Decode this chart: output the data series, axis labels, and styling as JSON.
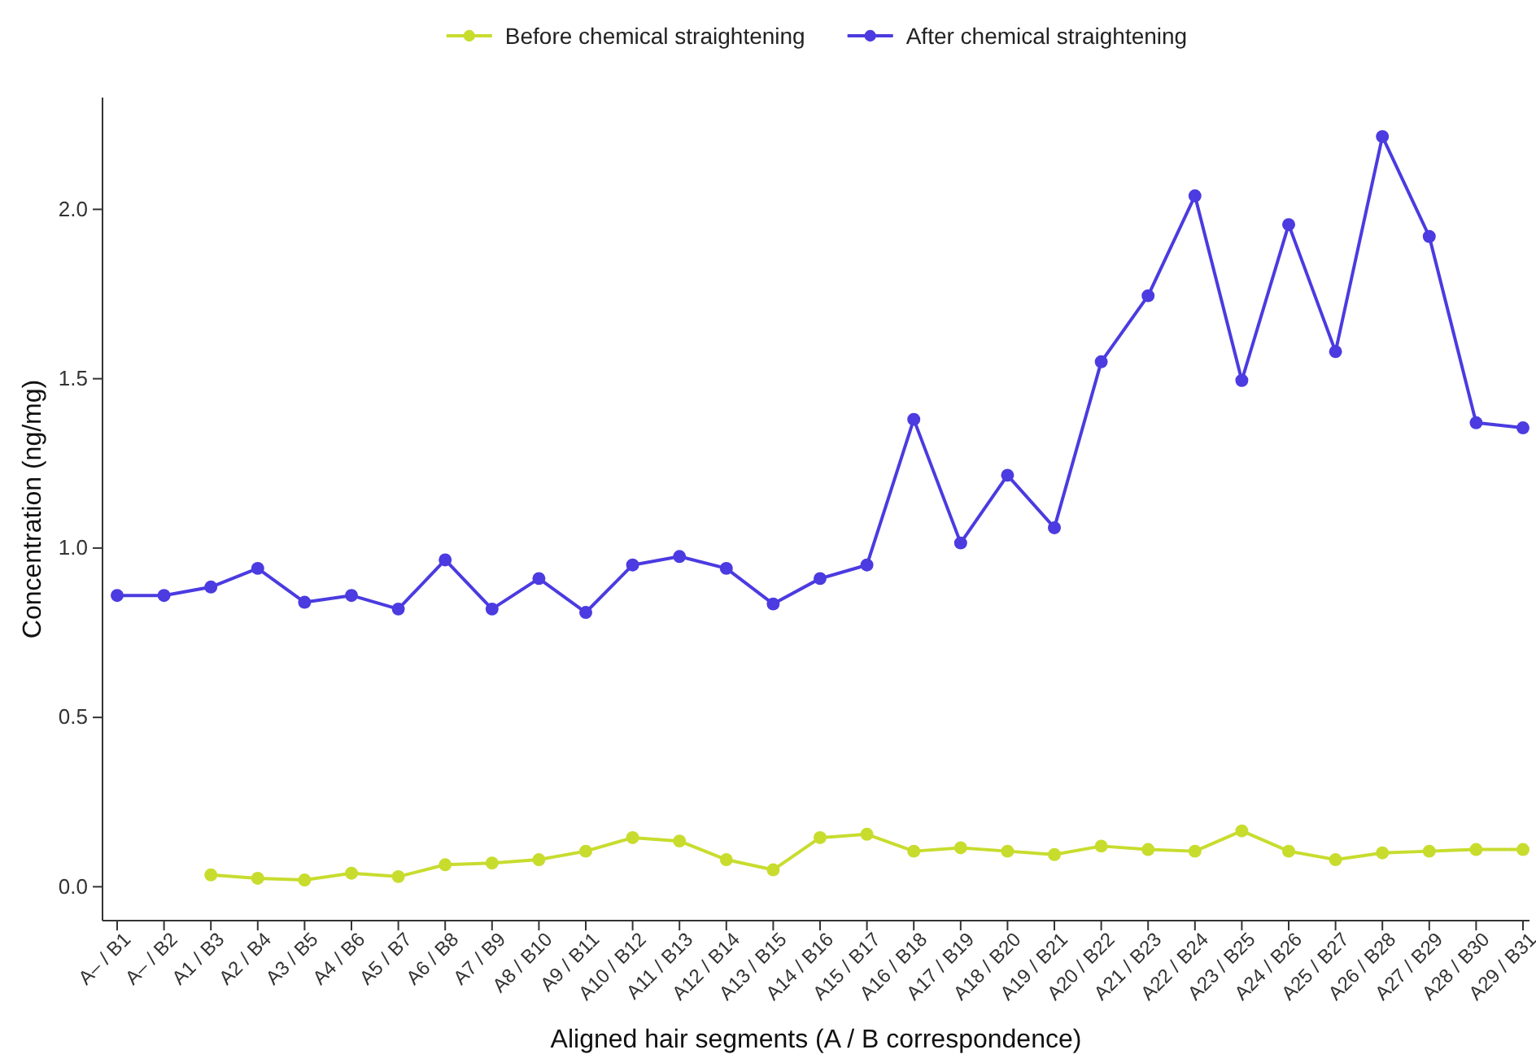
{
  "chart_data": {
    "type": "line",
    "xlabel": "Aligned hair segments (A / B correspondence)",
    "ylabel": "Concentration (ng/mg)",
    "categories": [
      "A– / B1",
      "A– / B2",
      "A1 / B3",
      "A2 / B4",
      "A3 / B5",
      "A4 / B6",
      "A5 / B7",
      "A6 / B8",
      "A7 / B9",
      "A8 / B10",
      "A9 / B11",
      "A10 / B12",
      "A11 / B13",
      "A12 / B14",
      "A13 / B15",
      "A14 / B16",
      "A15 / B17",
      "A16 / B18",
      "A17 / B19",
      "A18 / B20",
      "A19 / B21",
      "A20 / B22",
      "A21 / B23",
      "A22 / B24",
      "A23 / B25",
      "A24 / B26",
      "A25 / B27",
      "A26 / B28",
      "A27 / B29",
      "A28 / B30",
      "A29 / B31"
    ],
    "series": [
      {
        "name": "Before chemical straightening",
        "color": "#c8dc2e",
        "values": [
          null,
          null,
          0.035,
          0.025,
          0.02,
          0.04,
          0.03,
          0.065,
          0.07,
          0.08,
          0.105,
          0.145,
          0.135,
          0.08,
          0.05,
          0.145,
          0.155,
          0.105,
          0.115,
          0.105,
          0.095,
          0.12,
          0.11,
          0.105,
          0.165,
          0.105,
          0.08,
          0.1,
          0.105,
          0.11,
          0.11
        ]
      },
      {
        "name": "After chemical straightening",
        "color": "#4b3be0",
        "values": [
          0.86,
          0.86,
          0.885,
          0.94,
          0.84,
          0.86,
          0.82,
          0.965,
          0.82,
          0.91,
          0.81,
          0.95,
          0.975,
          0.94,
          0.835,
          0.91,
          0.95,
          1.38,
          1.015,
          1.215,
          1.06,
          1.55,
          1.745,
          2.04,
          1.495,
          1.955,
          1.58,
          2.215,
          1.92,
          1.37,
          1.355
        ]
      }
    ],
    "ylim": [
      -0.1,
      2.33
    ],
    "yticks": [
      {
        "value": 0,
        "label": "0.0"
      },
      0.5,
      {
        "value": 1,
        "label": "1.0"
      },
      1.5,
      {
        "value": 2,
        "label": "2.0"
      }
    ],
    "legend": "top",
    "marker": "circle",
    "line_style": "solid"
  }
}
